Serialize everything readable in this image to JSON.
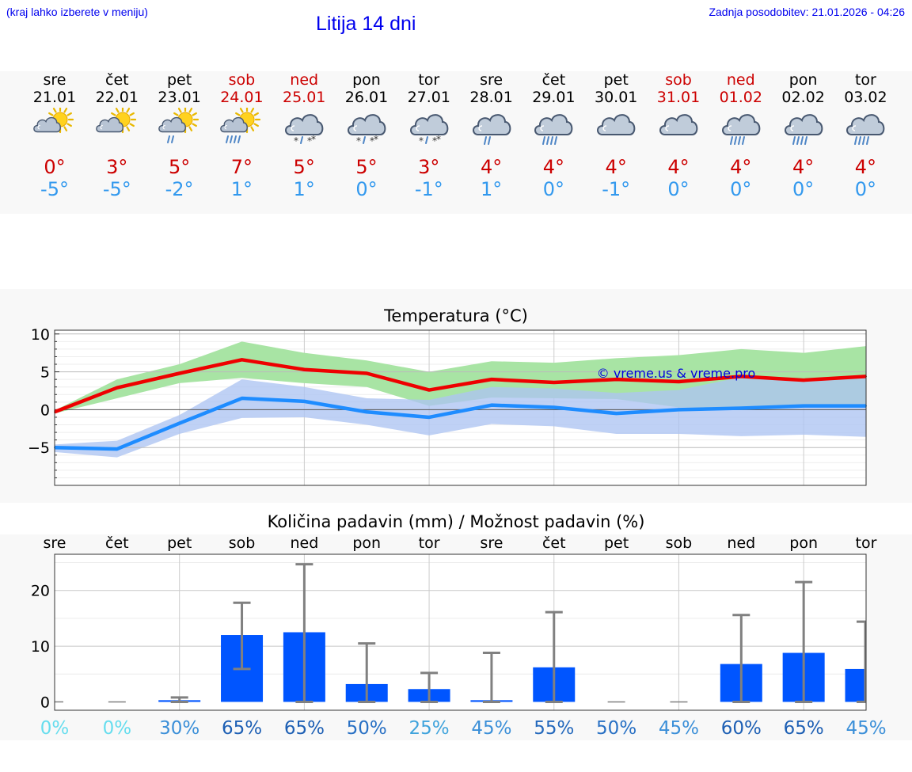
{
  "header": {
    "hint": "(kraj lahko izberete v meniju)",
    "title": "Litija 14 dni",
    "updated": "Zadnja posodobitev: 21.01.2026 - 04:26"
  },
  "days": [
    {
      "name": "sre",
      "date": "21.01",
      "weekend": false,
      "icon": "partly-cloudy-sun-icon",
      "tmax": "0°",
      "tmin": "-5°"
    },
    {
      "name": "čet",
      "date": "22.01",
      "weekend": false,
      "icon": "partly-cloudy-sun-icon",
      "tmax": "3°",
      "tmin": "-5°"
    },
    {
      "name": "pet",
      "date": "23.01",
      "weekend": false,
      "icon": "sun-cloud-light-rain-icon",
      "tmax": "5°",
      "tmin": "-2°"
    },
    {
      "name": "sob",
      "date": "24.01",
      "weekend": true,
      "icon": "sun-cloud-rain-icon",
      "tmax": "7°",
      "tmin": "1°"
    },
    {
      "name": "ned",
      "date": "25.01",
      "weekend": true,
      "icon": "cloud-sleet-icon",
      "tmax": "5°",
      "tmin": "1°"
    },
    {
      "name": "pon",
      "date": "26.01",
      "weekend": false,
      "icon": "cloud-sleet-icon",
      "tmax": "5°",
      "tmin": "0°"
    },
    {
      "name": "tor",
      "date": "27.01",
      "weekend": false,
      "icon": "cloud-sleet-icon",
      "tmax": "3°",
      "tmin": "-1°"
    },
    {
      "name": "sre",
      "date": "28.01",
      "weekend": false,
      "icon": "cloud-light-rain-icon",
      "tmax": "4°",
      "tmin": "1°"
    },
    {
      "name": "čet",
      "date": "29.01",
      "weekend": false,
      "icon": "cloud-rain-icon",
      "tmax": "4°",
      "tmin": "0°"
    },
    {
      "name": "pet",
      "date": "30.01",
      "weekend": false,
      "icon": "cloud-icon",
      "tmax": "4°",
      "tmin": "-1°"
    },
    {
      "name": "sob",
      "date": "31.01",
      "weekend": true,
      "icon": "cloud-icon",
      "tmax": "4°",
      "tmin": "0°"
    },
    {
      "name": "ned",
      "date": "01.02",
      "weekend": true,
      "icon": "cloud-rain-icon",
      "tmax": "4°",
      "tmin": "0°"
    },
    {
      "name": "pon",
      "date": "02.02",
      "weekend": false,
      "icon": "cloud-rain-icon",
      "tmax": "4°",
      "tmin": "0°"
    },
    {
      "name": "tor",
      "date": "03.02",
      "weekend": false,
      "icon": "cloud-rain-icon",
      "tmax": "4°",
      "tmin": "0°"
    }
  ],
  "colors": {
    "link": "#0000ee",
    "weekend": "#cc0000",
    "tmax": "#cc0000",
    "tmin": "#3399ee",
    "max_line": "#ee0000",
    "min_line": "#1e8cff",
    "max_band": "#a8e4a4",
    "min_band": "#adc4f2",
    "overlap_band": "#7cc4a4",
    "bar": "#0055ff",
    "error_bar": "#808080"
  },
  "chart_data": [
    {
      "type": "line",
      "title": "Temperatura (°C)",
      "watermark": "© vreme.us & vreme.pro",
      "ylim": [
        -10,
        10.5
      ],
      "yticks": [
        10,
        5,
        0,
        -5
      ],
      "ytick_labels": [
        "10",
        "5",
        "0",
        "−5"
      ],
      "x": [
        0,
        1,
        2,
        3,
        4,
        5,
        6,
        7,
        8,
        9,
        10,
        11,
        12,
        13
      ],
      "series": [
        {
          "name": "max",
          "values": [
            -0.3,
            2.9,
            4.8,
            6.6,
            5.3,
            4.8,
            2.6,
            4.0,
            3.6,
            4.0,
            3.7,
            4.4,
            3.9,
            4.4
          ]
        },
        {
          "name": "min",
          "values": [
            -5.0,
            -5.2,
            -1.8,
            1.5,
            1.1,
            -0.3,
            -1.0,
            0.6,
            0.3,
            -0.5,
            0.0,
            0.2,
            0.5,
            0.5
          ]
        }
      ],
      "bands": [
        {
          "name": "max-range",
          "lower": [
            -0.5,
            1.5,
            3.5,
            4.2,
            3.5,
            3.0,
            0.5,
            1.6,
            1.5,
            1.4,
            0.3,
            0.2,
            0.3,
            0.5
          ],
          "upper": [
            -0.1,
            4.0,
            6.0,
            9.0,
            7.5,
            6.5,
            5.0,
            6.4,
            6.2,
            6.8,
            7.2,
            8.0,
            7.5,
            8.4
          ]
        },
        {
          "name": "min-range",
          "lower": [
            -5.6,
            -6.3,
            -3.2,
            -1.1,
            -1.0,
            -2.0,
            -3.4,
            -1.9,
            -2.2,
            -3.2,
            -3.2,
            -3.5,
            -3.3,
            -3.6
          ],
          "upper": [
            -4.6,
            -4.1,
            -0.7,
            4.0,
            3.0,
            1.5,
            1.3,
            3.0,
            2.8,
            2.2,
            2.6,
            4.3,
            3.8,
            4.4
          ]
        }
      ]
    },
    {
      "type": "bar",
      "title": "Količina padavin (mm) / Možnost padavin (%)",
      "categories": [
        "sre",
        "čet",
        "pet",
        "sob",
        "ned",
        "pon",
        "tor",
        "sre",
        "čet",
        "pet",
        "sob",
        "ned",
        "pon",
        "tor"
      ],
      "ylim": [
        -1.5,
        26.5
      ],
      "yticks": [
        20,
        10,
        0
      ],
      "values": [
        0,
        0,
        0.3,
        12,
        12.5,
        3.2,
        2.3,
        0.3,
        6.2,
        0,
        0,
        6.8,
        8.8,
        5.9
      ],
      "error_low": [
        0,
        0,
        0,
        5.9,
        0,
        0,
        0,
        0,
        0,
        0,
        0,
        0,
        0,
        0
      ],
      "error_high": [
        0,
        0,
        0.8,
        17.8,
        24.7,
        10.5,
        5.2,
        8.8,
        16.1,
        0,
        0,
        15.6,
        21.5,
        14.4
      ],
      "probability": [
        "0%",
        "0%",
        "30%",
        "65%",
        "65%",
        "50%",
        "25%",
        "45%",
        "55%",
        "50%",
        "45%",
        "60%",
        "65%",
        "45%"
      ],
      "probability_colors": [
        "#66ddee",
        "#66ddee",
        "#3b8fd8",
        "#1d5fb4",
        "#1d5fb4",
        "#2870c4",
        "#3fa3dc",
        "#3b8fd8",
        "#2368bc",
        "#2870c4",
        "#3b8fd8",
        "#1d5fb4",
        "#1d5fb4",
        "#3b8fd8"
      ]
    }
  ]
}
